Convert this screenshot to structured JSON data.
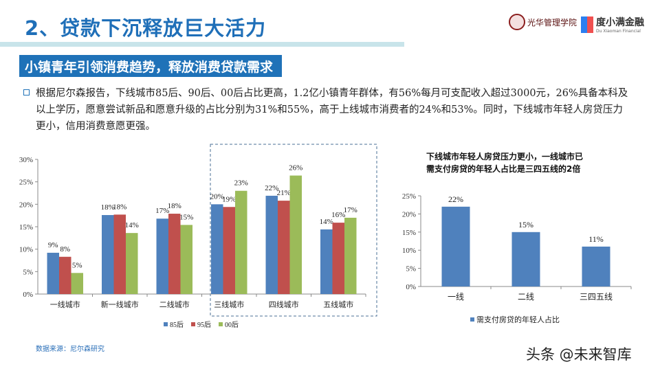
{
  "header": {
    "title": "2、贷款下沉释放巨大活力",
    "logo1_text": "光华管理学院",
    "logo2_name": "度小满金融",
    "logo2_sub": "Du Xiaoman Financial"
  },
  "subtitle": "小镇青年引领消费趋势，释放消费贷款需求",
  "paragraph": "根据尼尔森报告，下线城市85后、90后、00后占比更高，1.2亿小镇青年群体，有56%每月可支配收入超过3000元，26%具备本科及以上学历，愿意尝试新品和愿意升级的占比分别为31%和55%，高于上线城市消费者的24%和53%。同时，下线城市年轻人房贷压力更小，信用消费意愿更强。",
  "source": "数据来源：尼尔森研究",
  "watermark": "头条 @未来智库",
  "colors": {
    "blue": "#4f81bd",
    "red": "#c0504d",
    "green": "#9bbb59",
    "accent": "#1f72b8"
  },
  "chart_data": [
    {
      "type": "bar",
      "title": "",
      "categories": [
        "一线城市",
        "新一线城市",
        "二线城市",
        "三线城市",
        "四线城市",
        "五线城市"
      ],
      "ylim": [
        0,
        30
      ],
      "yticks": [
        "0%",
        "5%",
        "10%",
        "15%",
        "20%",
        "25%",
        "30%"
      ],
      "legend": "bottom",
      "highlight": [
        "三线城市",
        "四线城市",
        "五线城市"
      ],
      "series": [
        {
          "name": "85后",
          "color": "#4f81bd",
          "values": [
            9.2,
            17.6,
            16.8,
            20,
            21.9,
            14.4
          ],
          "labels": [
            "9%",
            "18%",
            "17%",
            "20%",
            "22%",
            "14%"
          ]
        },
        {
          "name": "95后",
          "color": "#c0504d",
          "values": [
            8.3,
            17.7,
            17.9,
            19.4,
            20.8,
            15.9
          ],
          "labels": [
            "8%",
            "18%",
            "18%",
            "19%",
            "21%",
            "16%"
          ]
        },
        {
          "name": "00后",
          "color": "#9bbb59",
          "values": [
            4.7,
            13.6,
            15.4,
            23,
            26.4,
            17
          ],
          "labels": [
            "5%",
            "14%",
            "15%",
            "23%",
            "26%",
            "17%"
          ]
        }
      ]
    },
    {
      "type": "bar",
      "title": "下线城市年轻人房贷压力更小，一线城市已需支付房贷的年轻人占比是三四五线的2倍",
      "title_lines": [
        "下线城市年轻人房贷压力更小，一线城市已",
        "需支付房贷的年轻人占比是三四五线的2倍"
      ],
      "categories": [
        "一线",
        "二线",
        "三四五线"
      ],
      "ylim": [
        0,
        25
      ],
      "yticks": [
        "0%",
        "5%",
        "10%",
        "15%",
        "20%",
        "25%"
      ],
      "legend": "bottom",
      "series": [
        {
          "name": "需支付房贷的年轻人占比",
          "color": "#4f81bd",
          "values": [
            22,
            15,
            11
          ],
          "labels": [
            "22%",
            "15%",
            "11%"
          ]
        }
      ]
    }
  ]
}
